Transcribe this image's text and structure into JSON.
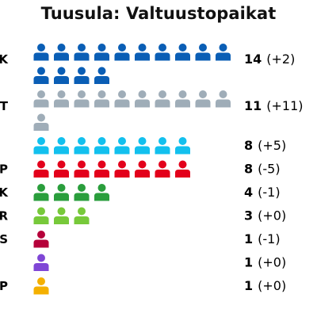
{
  "chart_data": {
    "type": "waffle",
    "title": "Tuusula: Valtuustopaikat",
    "parties": [
      {
        "label": "K",
        "seats": 14,
        "change": "+2",
        "color": "#0a5eb5"
      },
      {
        "label": "UT",
        "seats": 11,
        "change": "+11",
        "color": "#9fadb8"
      },
      {
        "label": "",
        "seats": 8,
        "change": "+5",
        "color": "#12c0ee"
      },
      {
        "label": "P",
        "seats": 8,
        "change": "-5",
        "color": "#e3001b"
      },
      {
        "label": "SK",
        "seats": 4,
        "change": "-1",
        "color": "#2a9e3c"
      },
      {
        "label": "R",
        "seats": 3,
        "change": "+0",
        "color": "#77c93a"
      },
      {
        "label": "S",
        "seats": 1,
        "change": "-1",
        "color": "#b5003a"
      },
      {
        "label": "",
        "seats": 1,
        "change": "+0",
        "color": "#7f46d6"
      },
      {
        "label": "P",
        "seats": 1,
        "change": "+0",
        "color": "#f4b000"
      }
    ]
  }
}
